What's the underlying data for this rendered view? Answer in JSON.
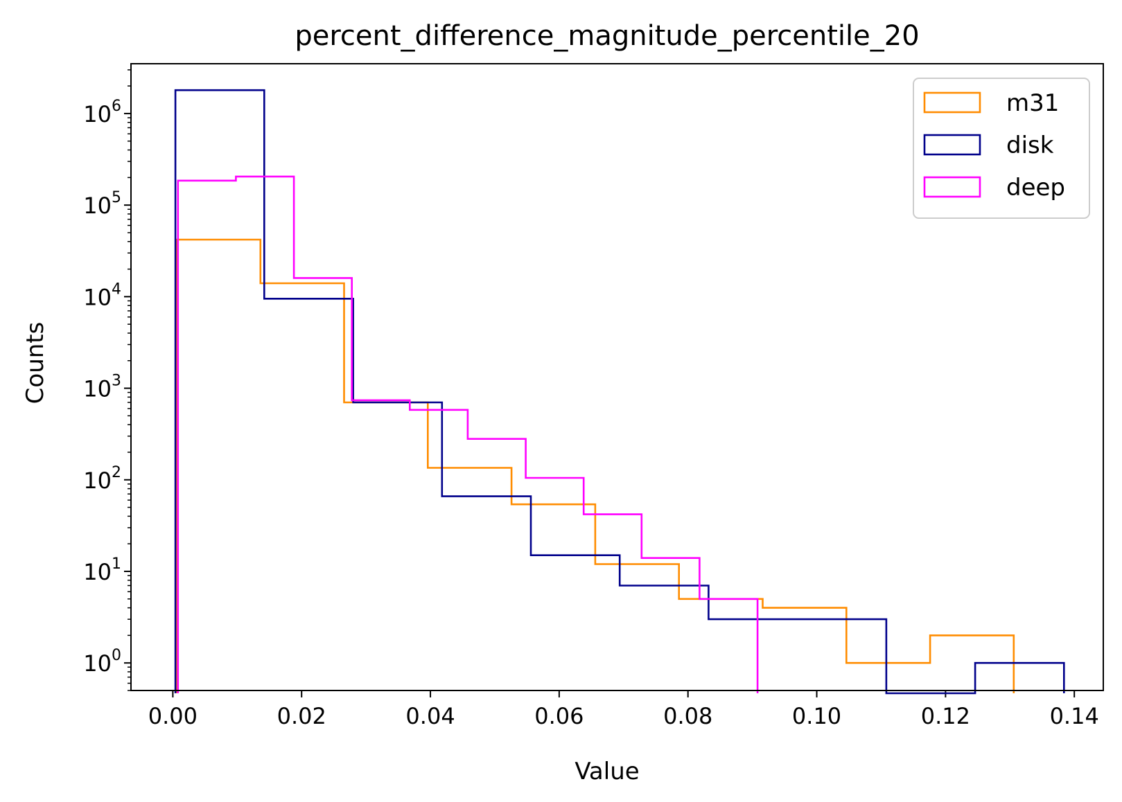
{
  "chart_data": {
    "type": "histogram",
    "title": "percent_difference_magnitude_percentile_20",
    "xlabel": "Value",
    "ylabel": "Counts",
    "yscale": "log",
    "xlim": [
      -0.0065,
      0.1445
    ],
    "ylim": [
      0.5,
      3500000
    ],
    "xticks": [
      "0.00",
      "0.02",
      "0.04",
      "0.06",
      "0.08",
      "0.10",
      "0.12",
      "0.14"
    ],
    "yticks": [
      {
        "base": "10",
        "exp": "0"
      },
      {
        "base": "10",
        "exp": "1"
      },
      {
        "base": "10",
        "exp": "2"
      },
      {
        "base": "10",
        "exp": "3"
      },
      {
        "base": "10",
        "exp": "4"
      },
      {
        "base": "10",
        "exp": "5"
      },
      {
        "base": "10",
        "exp": "6"
      }
    ],
    "grid": false,
    "legend_position": "top-right",
    "series": [
      {
        "name": "m31",
        "color": "#ff8c00",
        "bin_edges": [
          0.0006,
          0.0136,
          0.0266,
          0.0396,
          0.0526,
          0.0656,
          0.0786,
          0.0916,
          0.1046,
          0.1176,
          0.1306
        ],
        "counts": [
          42000,
          14000,
          700,
          135,
          54,
          12,
          5,
          4,
          1,
          2
        ]
      },
      {
        "name": "disk",
        "color": "#00008b",
        "bin_edges": [
          0.0004,
          0.0142,
          0.028,
          0.0418,
          0.0556,
          0.0694,
          0.0832,
          0.097,
          0.1108,
          0.1246,
          0.1384
        ],
        "counts": [
          1800000,
          9500,
          700,
          66,
          15,
          7,
          3,
          3,
          0,
          1
        ]
      },
      {
        "name": "deep",
        "color": "#ff00ff",
        "bin_edges": [
          0.0008,
          0.0098,
          0.0188,
          0.0278,
          0.0368,
          0.0458,
          0.0548,
          0.0638,
          0.0728,
          0.0818,
          0.0908
        ],
        "counts": [
          185000,
          205000,
          16000,
          740,
          580,
          280,
          105,
          42,
          14,
          5
        ]
      }
    ]
  }
}
